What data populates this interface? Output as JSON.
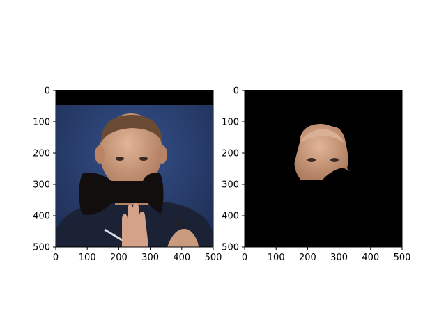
{
  "figure": {
    "background": "#ffffff",
    "panels": [
      {
        "id": "original-with-bowtie",
        "description_hidden": true,
        "x_ticks": [
          "0",
          "100",
          "200",
          "300",
          "400",
          "500"
        ],
        "y_ticks": [
          "0",
          "100",
          "200",
          "300",
          "400",
          "500"
        ]
      },
      {
        "id": "face-segmentation-mask",
        "description_hidden": true,
        "x_ticks": [
          "0",
          "100",
          "200",
          "300",
          "400",
          "500"
        ],
        "y_ticks": [
          "0",
          "100",
          "200",
          "300",
          "400",
          "500"
        ]
      }
    ]
  },
  "chart_data": [
    {
      "type": "image",
      "xlim": [
        0,
        500
      ],
      "ylim": [
        500,
        0
      ],
      "x_tick_values": [
        0,
        100,
        200,
        300,
        400,
        500
      ],
      "y_tick_values": [
        0,
        100,
        200,
        300,
        400,
        500
      ],
      "content": "photo"
    },
    {
      "type": "image",
      "xlim": [
        0,
        500
      ],
      "ylim": [
        500,
        0
      ],
      "x_tick_values": [
        0,
        100,
        200,
        300,
        400,
        500
      ],
      "y_tick_values": [
        0,
        100,
        200,
        300,
        400,
        500
      ],
      "content": "mask"
    }
  ],
  "colors": {
    "backdrop_blue": "#2a3f6b",
    "shirt_navy": "#1c2236",
    "skin": "#c99a7c",
    "bowtie": "#110e0d",
    "mask_black": "#000000"
  }
}
